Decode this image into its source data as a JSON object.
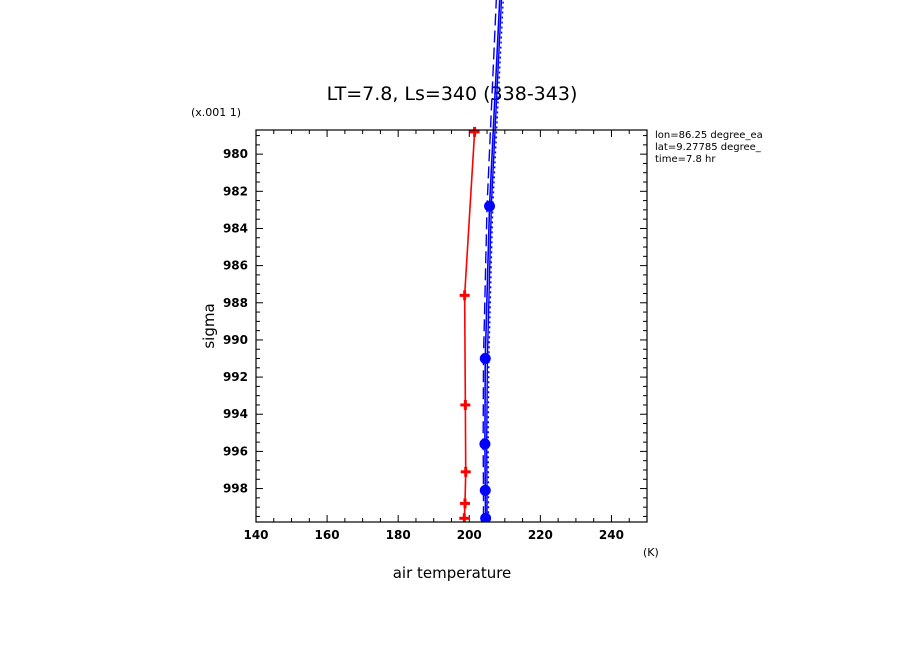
{
  "chart_data": {
    "type": "line",
    "title": "LT=7.8, Ls=340 (338-343)",
    "xlabel": "air temperature",
    "xunit": "(K)",
    "ylabel": "sigma",
    "yscale_label": "(x.001 1)",
    "xlim": [
      140,
      250
    ],
    "ylim": [
      999.8,
      978.7
    ],
    "y_inverted": true,
    "grid": false,
    "x_ticks": [
      140,
      160,
      180,
      200,
      220,
      240
    ],
    "y_ticks": [
      980,
      982,
      984,
      986,
      988,
      990,
      992,
      994,
      996,
      998
    ],
    "info_lines": [
      "lon=86.25 degree_ea",
      "lat=9.27785 degree_",
      "time=7.8 hr"
    ],
    "colors": {
      "red": "#ff0000",
      "blue": "#0000ff"
    },
    "series": [
      {
        "color": "#ff0000",
        "style": "solid-markers",
        "x": [
          198.6,
          198.8,
          199.0,
          198.9,
          198.7,
          201.5
        ],
        "y": [
          999.6,
          998.8,
          997.1,
          993.5,
          987.6,
          978.8
        ]
      },
      {
        "color": "#0000ff",
        "style": "solid-markers",
        "x": [
          204.6,
          204.5,
          204.4,
          204.5,
          205.7,
          209.0
        ],
        "y": [
          999.6,
          998.1,
          995.6,
          991.0,
          982.8,
          970.0
        ]
      },
      {
        "color": "#0000ff",
        "style": "dashed",
        "x": [
          204.0,
          204.0,
          203.9,
          204.0,
          205.0,
          208.0
        ],
        "y": [
          999.6,
          998.1,
          995.6,
          991.0,
          982.8,
          970.0
        ]
      },
      {
        "color": "#0000ff",
        "style": "dotted",
        "x": [
          205.4,
          205.4,
          205.3,
          205.5,
          206.6,
          210.0
        ],
        "y": [
          999.6,
          998.1,
          995.6,
          991.0,
          982.8,
          970.0
        ]
      },
      {
        "color": "#0000ff",
        "style": "solid",
        "x": [
          205.0,
          205.0,
          204.9,
          205.1,
          206.2,
          209.5
        ],
        "y": [
          999.6,
          998.1,
          995.6,
          991.0,
          982.8,
          970.0
        ]
      }
    ]
  }
}
